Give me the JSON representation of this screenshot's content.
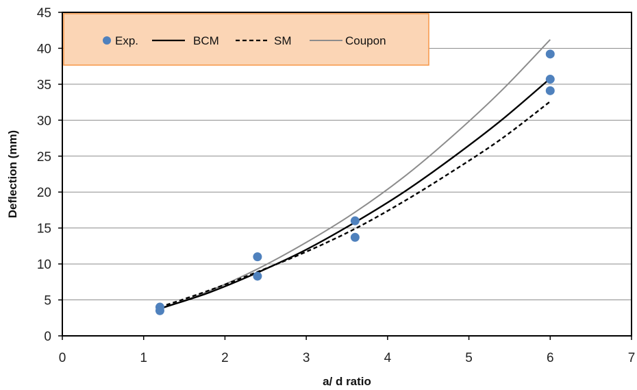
{
  "chart_data": {
    "type": "scatter",
    "xlabel": "a/ d ratio",
    "ylabel": "Deflection (mm)",
    "xlim": [
      0,
      7
    ],
    "ylim": [
      0,
      45
    ],
    "xticks": [
      0,
      1,
      2,
      3,
      4,
      5,
      6,
      7
    ],
    "yticks": [
      0,
      5,
      10,
      15,
      20,
      25,
      30,
      35,
      40,
      45
    ],
    "grid": "horizontal",
    "legend_position": "top-left",
    "series": [
      {
        "name": "Exp.",
        "kind": "markers",
        "color": "#4F81BD",
        "points": [
          [
            1.2,
            4.0
          ],
          [
            1.2,
            3.5
          ],
          [
            2.4,
            11.0
          ],
          [
            2.4,
            8.3
          ],
          [
            3.6,
            16.0
          ],
          [
            3.6,
            13.7
          ],
          [
            6.0,
            39.2
          ],
          [
            6.0,
            35.7
          ],
          [
            6.0,
            34.1
          ]
        ]
      },
      {
        "name": "BCM",
        "kind": "line",
        "style": "solid",
        "color": "#000000",
        "points": [
          [
            1.2,
            3.8
          ],
          [
            1.8,
            6.0
          ],
          [
            2.4,
            8.8
          ],
          [
            3.0,
            12.0
          ],
          [
            3.6,
            15.8
          ],
          [
            4.2,
            20.0
          ],
          [
            4.8,
            24.8
          ],
          [
            5.4,
            30.0
          ],
          [
            6.0,
            35.8
          ]
        ]
      },
      {
        "name": "SM",
        "kind": "line",
        "style": "dashed",
        "color": "#000000",
        "points": [
          [
            1.2,
            4.0
          ],
          [
            1.8,
            6.3
          ],
          [
            2.4,
            8.9
          ],
          [
            3.0,
            11.7
          ],
          [
            3.6,
            14.9
          ],
          [
            4.2,
            18.7
          ],
          [
            4.8,
            22.9
          ],
          [
            5.4,
            27.4
          ],
          [
            6.0,
            32.6
          ]
        ]
      },
      {
        "name": "Coupon",
        "kind": "line",
        "style": "solid",
        "color": "#8c8c8c",
        "points": [
          [
            1.2,
            3.7
          ],
          [
            1.8,
            6.2
          ],
          [
            2.4,
            9.3
          ],
          [
            3.0,
            13.0
          ],
          [
            3.6,
            17.2
          ],
          [
            4.2,
            22.1
          ],
          [
            4.8,
            27.8
          ],
          [
            5.4,
            34.1
          ],
          [
            6.0,
            41.2
          ]
        ]
      }
    ]
  },
  "colors": {
    "legend_fill": "#FBD5B5",
    "legend_border": "#F79646",
    "grid": "#8c8c8c"
  }
}
